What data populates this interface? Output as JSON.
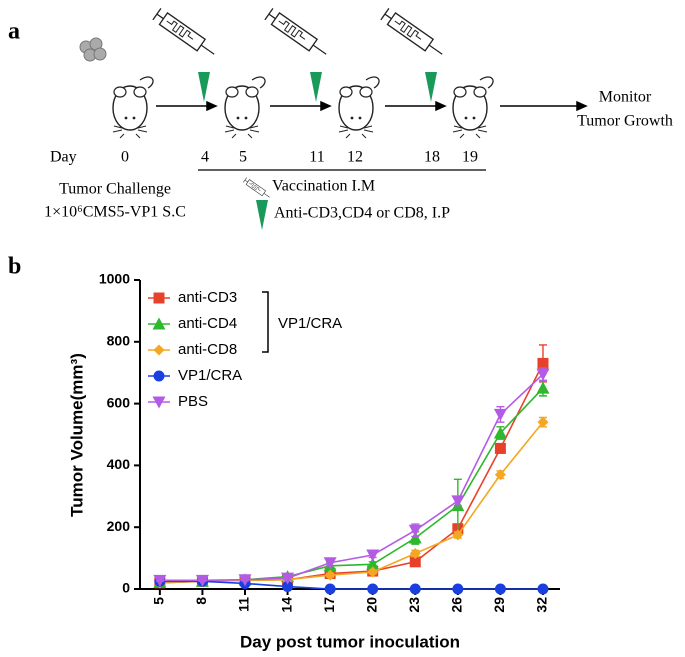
{
  "panel_a": {
    "label": "a",
    "day_label": "Day",
    "days": [
      "0",
      "4",
      "5",
      "11",
      "12",
      "18",
      "19"
    ],
    "monitor": [
      "Monitor",
      "Tumor Growth"
    ],
    "challenge": [
      "Tumor Challenge",
      "1×10⁶CMS5-VP1 S.C"
    ],
    "legend": [
      "Vaccination  I.M",
      "Anti-CD3,CD4 or CD8, I.P"
    ]
  },
  "chart_data": {
    "type": "line",
    "panel_label": "b",
    "xlabel": "Day post  tumor inoculation",
    "ylabel": "Tumor Volume(mm³)",
    "x": [
      5,
      8,
      11,
      14,
      17,
      20,
      23,
      26,
      29,
      32
    ],
    "xlim": [
      3.6,
      33.2
    ],
    "xticks": [
      5,
      8,
      11,
      14,
      17,
      20,
      23,
      26,
      29,
      32
    ],
    "ylim": [
      0,
      1000
    ],
    "yticks": [
      0,
      200,
      400,
      600,
      800,
      1000
    ],
    "legend_group_label": "VP1/CRA",
    "series": [
      {
        "name": "anti-CD3",
        "color": "#e8412b",
        "marker": "square",
        "values": [
          20,
          25,
          28,
          30,
          50,
          58,
          88,
          195,
          455,
          730
        ],
        "errors": [
          3,
          3,
          4,
          5,
          6,
          6,
          10,
          15,
          15,
          60
        ]
      },
      {
        "name": "anti-CD4",
        "color": "#2db82d",
        "marker": "triangle",
        "values": [
          22,
          25,
          30,
          40,
          75,
          80,
          165,
          270,
          505,
          650
        ],
        "errors": [
          3,
          3,
          4,
          8,
          10,
          8,
          20,
          85,
          20,
          25
        ]
      },
      {
        "name": "anti-CD8",
        "color": "#f5a623",
        "marker": "diamond",
        "values": [
          20,
          25,
          28,
          30,
          45,
          55,
          115,
          175,
          370,
          540
        ],
        "errors": [
          3,
          3,
          4,
          5,
          6,
          6,
          10,
          10,
          12,
          15
        ]
      },
      {
        "name": "VP1/CRA",
        "color": "#1a3fe0",
        "marker": "circle",
        "values": [
          25,
          25,
          18,
          8,
          0,
          0,
          0,
          0,
          0,
          0
        ],
        "errors": [
          3,
          3,
          3,
          3,
          0,
          0,
          0,
          0,
          0,
          0
        ]
      },
      {
        "name": "PBS",
        "color": "#b45be6",
        "marker": "down-triangle",
        "values": [
          28,
          28,
          30,
          35,
          85,
          110,
          190,
          285,
          565,
          695
        ],
        "errors": [
          3,
          3,
          4,
          6,
          10,
          8,
          20,
          15,
          25,
          20
        ]
      }
    ]
  }
}
